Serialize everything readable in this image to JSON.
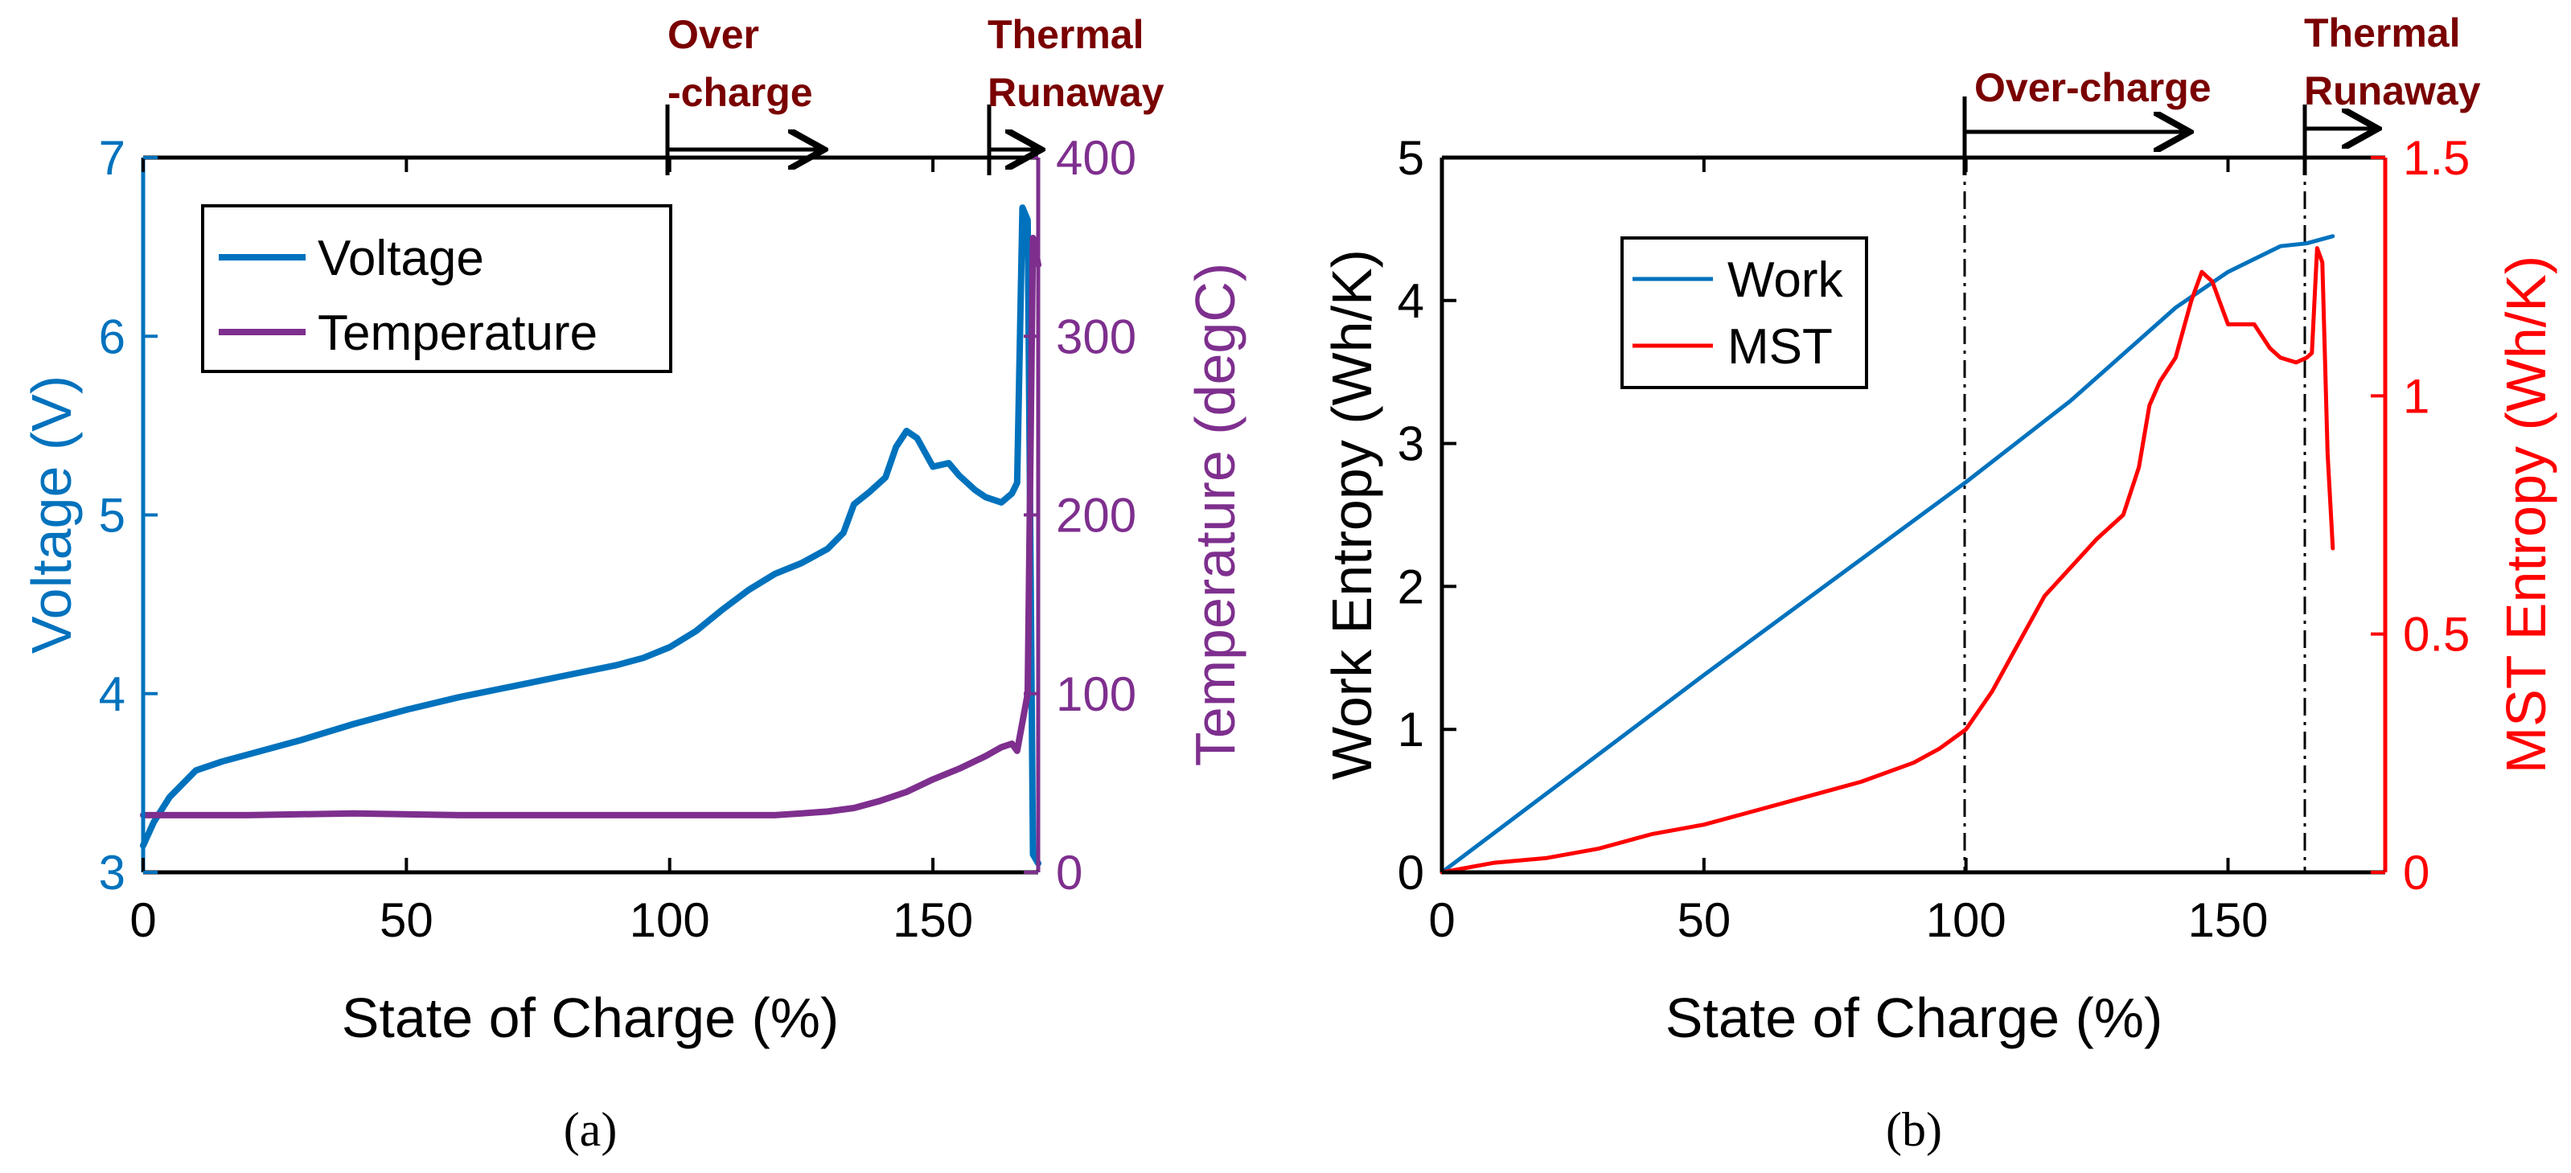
{
  "colors": {
    "voltage": "#0072BD",
    "temperature": "#7E2F8E",
    "work": "#0072BD",
    "mst": "#FF0000",
    "region_label": "#7A0000",
    "axis": "#000000"
  },
  "chart_data": [
    {
      "type": "line",
      "panel": "a",
      "caption": "(a)",
      "xlabel": "State of Charge (%)",
      "ylabel": "Voltage (V)",
      "y2label": "Temperature (degC)",
      "xlim": [
        0,
        170
      ],
      "ylim": [
        3,
        7
      ],
      "y2lim": [
        0,
        400
      ],
      "xticks": [
        0,
        50,
        100,
        150
      ],
      "xtick_labels": [
        "0",
        "50",
        "100",
        "150"
      ],
      "yticks": [
        3,
        4,
        5,
        6,
        7
      ],
      "ytick_labels": [
        "3",
        "4",
        "5",
        "6",
        "7"
      ],
      "y2ticks": [
        0,
        100,
        200,
        300,
        400
      ],
      "y2tick_labels": [
        "0",
        "100",
        "200",
        "300",
        "400"
      ],
      "legend": [
        "Voltage",
        "Temperature"
      ],
      "legend_position": "top-left",
      "annotations": [
        {
          "line1": "Over",
          "line2": "-charge",
          "x": 100
        },
        {
          "line1": "Thermal",
          "line2": "Runaway",
          "x": 162
        }
      ],
      "series": [
        {
          "name": "Voltage",
          "axis": "left",
          "x": [
            0,
            2,
            5,
            8,
            10,
            15,
            20,
            30,
            40,
            50,
            60,
            70,
            80,
            90,
            95,
            100,
            105,
            110,
            115,
            120,
            125,
            130,
            133,
            135,
            138,
            141,
            143,
            145,
            147,
            150,
            153,
            155,
            158,
            160,
            163,
            165,
            166,
            167,
            168,
            169,
            170
          ],
          "y": [
            3.15,
            3.28,
            3.42,
            3.51,
            3.57,
            3.62,
            3.66,
            3.74,
            3.83,
            3.91,
            3.98,
            4.04,
            4.1,
            4.16,
            4.2,
            4.26,
            4.35,
            4.47,
            4.58,
            4.67,
            4.73,
            4.81,
            4.9,
            5.06,
            5.13,
            5.21,
            5.38,
            5.47,
            5.43,
            5.27,
            5.29,
            5.22,
            5.14,
            5.1,
            5.07,
            5.12,
            5.18,
            6.72,
            6.65,
            3.1,
            3.05
          ]
        },
        {
          "name": "Temperature",
          "axis": "right",
          "x": [
            0,
            20,
            40,
            60,
            80,
            100,
            110,
            120,
            125,
            130,
            135,
            140,
            145,
            150,
            155,
            160,
            163,
            165,
            166,
            168,
            169,
            170
          ],
          "y": [
            32,
            32,
            33,
            32,
            32,
            32,
            32,
            32,
            33,
            34,
            36,
            40,
            45,
            52,
            58,
            65,
            70,
            72,
            68,
            100,
            355,
            340
          ]
        }
      ]
    },
    {
      "type": "line",
      "panel": "b",
      "caption": "(b)",
      "xlabel": "State of Charge (%)",
      "ylabel": "Work Entropy (Wh/K)",
      "y2label": "MST Entropy (Wh/K)",
      "xlim": [
        0,
        180
      ],
      "ylim": [
        0,
        5
      ],
      "y2lim": [
        0,
        1.5
      ],
      "xticks": [
        0,
        50,
        100,
        150
      ],
      "xtick_labels": [
        "0",
        "50",
        "100",
        "150"
      ],
      "yticks": [
        0,
        1,
        2,
        3,
        4,
        5
      ],
      "ytick_labels": [
        "0",
        "1",
        "2",
        "3",
        "4",
        "5"
      ],
      "y2ticks": [
        0,
        0.5,
        1,
        1.5
      ],
      "y2tick_labels": [
        "0",
        "0.5",
        "1",
        "1.5"
      ],
      "legend": [
        "Work",
        "MST"
      ],
      "legend_position": "top-left",
      "vlines": [
        100,
        166
      ],
      "annotations": [
        {
          "line1": "Over-charge",
          "x": 100
        },
        {
          "line1": "Thermal",
          "line2": "Runaway",
          "x": 166
        }
      ],
      "series": [
        {
          "name": "Work",
          "axis": "left",
          "x": [
            0,
            50,
            100,
            120,
            140,
            150,
            160,
            165,
            170
          ],
          "y": [
            0,
            1.38,
            2.73,
            3.3,
            3.95,
            4.2,
            4.38,
            4.4,
            4.45
          ]
        },
        {
          "name": "MST",
          "axis": "right",
          "x": [
            0,
            10,
            20,
            30,
            40,
            50,
            60,
            70,
            80,
            90,
            95,
            100,
            105,
            110,
            115,
            120,
            125,
            130,
            133,
            135,
            137,
            140,
            143,
            145,
            147,
            150,
            152,
            155,
            158,
            160,
            163,
            165,
            166,
            167,
            168,
            169,
            170
          ],
          "y": [
            0,
            0.02,
            0.03,
            0.05,
            0.08,
            0.1,
            0.13,
            0.16,
            0.19,
            0.23,
            0.26,
            0.3,
            0.38,
            0.48,
            0.58,
            0.64,
            0.7,
            0.75,
            0.85,
            0.98,
            1.03,
            1.08,
            1.2,
            1.26,
            1.24,
            1.15,
            1.15,
            1.15,
            1.1,
            1.08,
            1.07,
            1.08,
            1.09,
            1.31,
            1.28,
            0.88,
            0.68
          ]
        }
      ]
    }
  ]
}
